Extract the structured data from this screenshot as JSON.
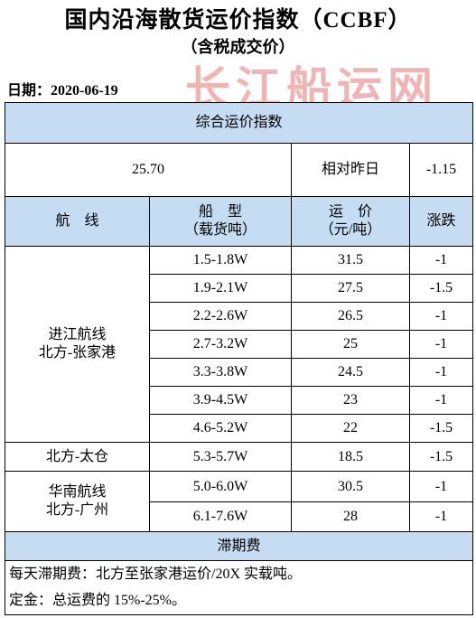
{
  "header": {
    "title": "国内沿海散货运价指数（CCBF）",
    "subtitle": "（含税成交价）",
    "date": "日期：2020-06-19",
    "watermark": "长江船运网"
  },
  "table": {
    "index_title": "综合运价指数",
    "index_value": "25.70",
    "change_label": "相对昨日",
    "change_value": "-1.15",
    "columns": [
      [
        "航　线"
      ],
      [
        "船　型",
        "（载货吨）"
      ],
      [
        "运　价",
        "（元/吨）"
      ],
      [
        "涨跌"
      ]
    ],
    "groups": [
      {
        "route": [
          "进江航线",
          "北方-张家港"
        ],
        "rows": [
          [
            "1.5-1.8W",
            "31.5",
            "-1"
          ],
          [
            "1.9-2.1W",
            "27.5",
            "-1.5"
          ],
          [
            "2.2-2.6W",
            "26.5",
            "-1"
          ],
          [
            "2.7-3.2W",
            "25",
            "-1"
          ],
          [
            "3.3-3.8W",
            "24.5",
            "-1"
          ],
          [
            "3.9-4.5W",
            "23",
            "-1"
          ],
          [
            "4.6-5.2W",
            "22",
            "-1.5"
          ]
        ]
      },
      {
        "route": [
          "北方-太仓"
        ],
        "rows": [
          [
            "5.3-5.7W",
            "18.5",
            "-1.5"
          ]
        ]
      },
      {
        "route": [
          "华南航线",
          "北方-广州"
        ],
        "rows": [
          [
            "5.0-6.0W",
            "30.5",
            "-1"
          ],
          [
            "6.1-7.6W",
            "28",
            "-1"
          ]
        ]
      }
    ],
    "demurrage_title": "滞期费",
    "notes": [
      "每天滞期费：北方至张家港运价/20X 实载吨。",
      "定金：总运费的 15%-25%。"
    ]
  }
}
